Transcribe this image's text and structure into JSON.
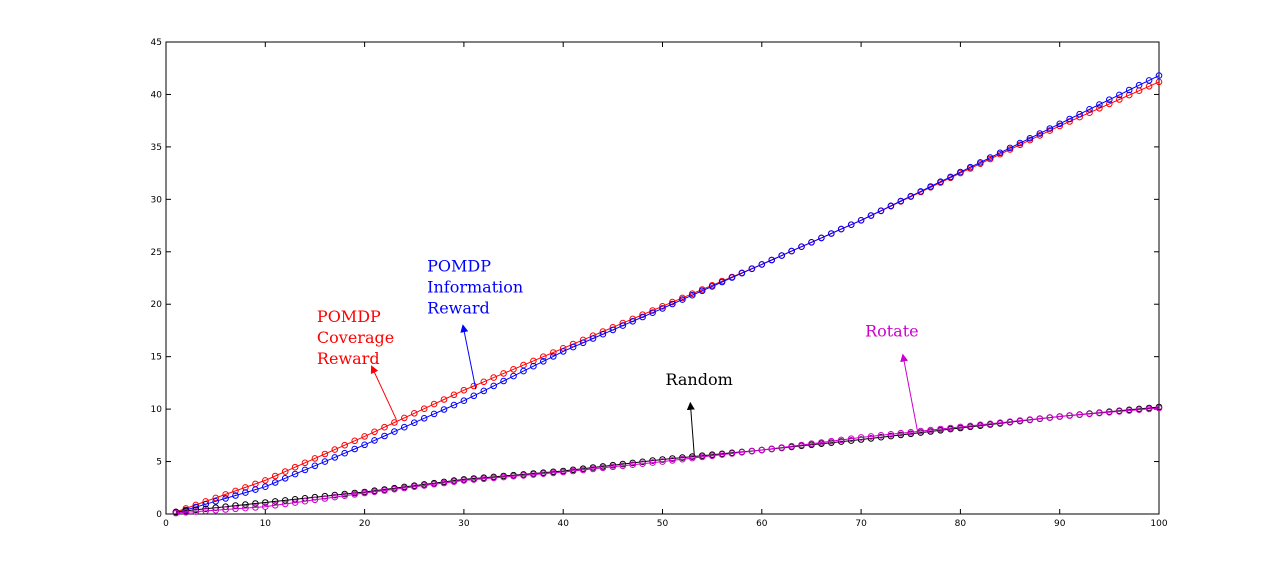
{
  "chart_data": {
    "type": "line",
    "title": "",
    "xlabel": "",
    "ylabel": "",
    "xlim": [
      0,
      100
    ],
    "ylim": [
      0,
      45
    ],
    "xticks": [
      0,
      10,
      20,
      30,
      40,
      50,
      60,
      70,
      80,
      90,
      100
    ],
    "yticks": [
      0,
      5,
      10,
      15,
      20,
      25,
      30,
      35,
      40,
      45
    ],
    "grid": false,
    "legend": "none",
    "marker": "circle",
    "x_step": 1,
    "series": [
      {
        "color": "#ff0000",
        "x": [
          1,
          10,
          20,
          30,
          40,
          50,
          60,
          70,
          80,
          90,
          100
        ],
        "y": [
          0.2,
          3.2,
          7.4,
          11.8,
          15.8,
          19.8,
          23.8,
          28.0,
          32.5,
          37.0,
          41.2
        ]
      },
      {
        "color": "#0000ff",
        "x": [
          1,
          10,
          20,
          30,
          40,
          50,
          60,
          70,
          80,
          90,
          100
        ],
        "y": [
          0.1,
          2.6,
          6.6,
          10.8,
          15.5,
          19.6,
          23.8,
          28.0,
          32.6,
          37.2,
          41.8
        ]
      },
      {
        "color": "#000000",
        "x": [
          1,
          10,
          20,
          30,
          40,
          50,
          60,
          70,
          80,
          90,
          100
        ],
        "y": [
          0.2,
          1.1,
          2.1,
          3.3,
          4.1,
          5.2,
          6.1,
          7.1,
          8.2,
          9.3,
          10.2
        ]
      },
      {
        "color": "#cc00cc",
        "x": [
          1,
          10,
          20,
          30,
          40,
          50,
          60,
          70,
          80,
          90,
          100
        ],
        "y": [
          0.1,
          0.7,
          2.0,
          3.2,
          4.0,
          5.0,
          6.1,
          7.3,
          8.3,
          9.3,
          10.1
        ]
      }
    ],
    "annotations": [
      {
        "lines": [
          "POMDP",
          "Coverage",
          "Reward"
        ],
        "color": "#ff0000",
        "text_pos": [
          15.2,
          18.3
        ],
        "arrow_from": [
          23.2,
          9.0
        ],
        "arrow_to": [
          20.7,
          14.1
        ]
      },
      {
        "lines": [
          "POMDP",
          "Information",
          "Reward"
        ],
        "color": "#0000ff",
        "text_pos": [
          26.3,
          23.1
        ],
        "arrow_from": [
          31.2,
          11.9
        ],
        "arrow_to": [
          29.9,
          18.0
        ]
      },
      {
        "lines": [
          "Random"
        ],
        "color": "#000000",
        "text_pos": [
          50.3,
          12.3
        ],
        "arrow_from": [
          53.2,
          5.6
        ],
        "arrow_to": [
          52.8,
          10.6
        ]
      },
      {
        "lines": [
          "Rotate"
        ],
        "color": "#cc00cc",
        "text_pos": [
          70.4,
          16.9
        ],
        "arrow_from": [
          75.7,
          7.8
        ],
        "arrow_to": [
          74.2,
          15.2
        ]
      }
    ]
  }
}
